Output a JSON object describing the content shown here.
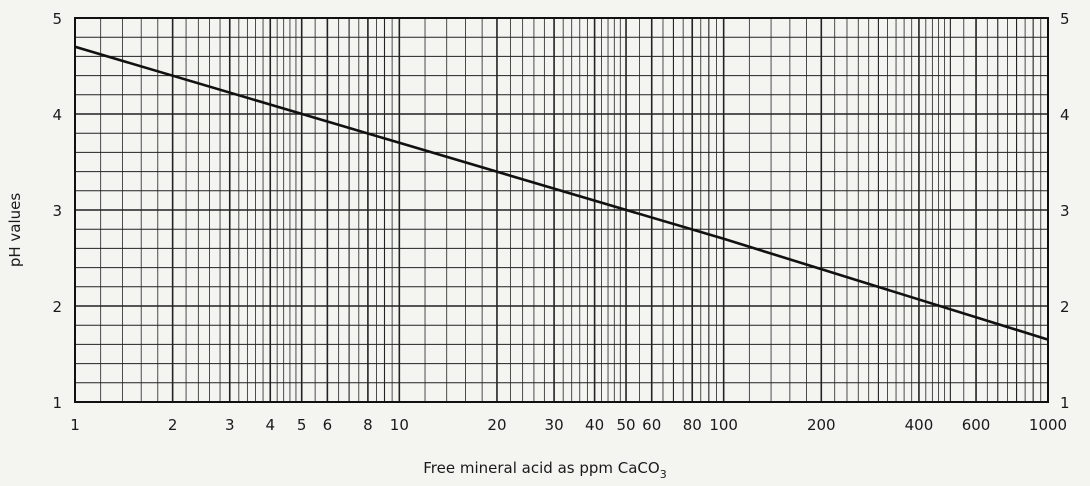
{
  "chart_data": {
    "type": "line",
    "title": "",
    "xlabel": "Free mineral acid as ppm CaCO",
    "xlabel_sub": "3",
    "ylabel": "pH values",
    "x_scale": "log",
    "xlim": [
      1,
      1000
    ],
    "ylim": [
      1,
      5
    ],
    "grid": true,
    "x_ticks": [
      1,
      2,
      3,
      4,
      5,
      6,
      8,
      10,
      20,
      30,
      40,
      50,
      60,
      80,
      100,
      200,
      400,
      600,
      1000
    ],
    "x_tick_labels": [
      "1",
      "2",
      "3",
      "4",
      "5",
      "6",
      "8",
      "10",
      "20",
      "30",
      "40",
      "50",
      "60",
      "80",
      "100",
      "200",
      "400",
      "600",
      "1000"
    ],
    "y_ticks": [
      1,
      2,
      3,
      4,
      5
    ],
    "y_tick_labels": [
      "1",
      "2",
      "3",
      "4",
      "5"
    ],
    "series": [
      {
        "x": [
          1,
          10,
          100,
          1000
        ],
        "y": [
          4.7,
          3.7,
          2.7,
          1.65
        ]
      }
    ],
    "colors": {
      "line": "#111111",
      "grid": "#222222",
      "background": "#f4f4f1"
    }
  }
}
